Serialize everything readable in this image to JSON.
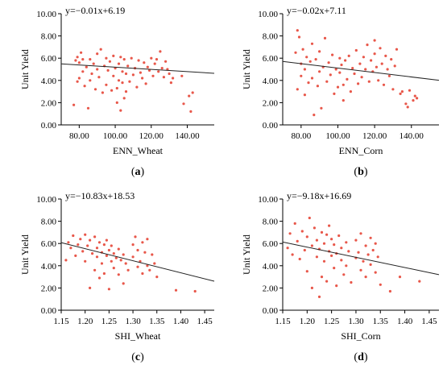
{
  "chart_data": [
    {
      "type": "scatter",
      "panel": "a",
      "caption": "(a)",
      "equation": "y=−0.01x+6.19",
      "xlabel": "ENN_Wheat",
      "ylabel": "Unit Yield",
      "xlim": [
        70,
        155
      ],
      "ylim": [
        0,
        10
      ],
      "xticks": [
        80,
        100,
        120,
        140
      ],
      "xtick_labels": [
        "80.00",
        "100.00",
        "120.00",
        "140.00"
      ],
      "yticks": [
        0,
        2,
        4,
        6,
        8,
        10
      ],
      "ytick_labels": [
        "0.00",
        "2.00",
        "4.00",
        "6.00",
        "8.00",
        "10.00"
      ],
      "trend": {
        "slope": -0.01,
        "intercept": 6.19
      },
      "marker_color": "#e8574a",
      "points": [
        [
          77,
          1.8
        ],
        [
          78,
          5.8
        ],
        [
          79,
          3.9
        ],
        [
          79,
          6.1
        ],
        [
          80,
          5.6
        ],
        [
          80,
          4.2
        ],
        [
          81,
          6.5
        ],
        [
          82,
          5.9
        ],
        [
          82,
          4.8
        ],
        [
          83,
          3.5
        ],
        [
          84,
          5.2
        ],
        [
          85,
          1.5
        ],
        [
          86,
          4.0
        ],
        [
          86,
          5.9
        ],
        [
          87,
          4.6
        ],
        [
          88,
          5.5
        ],
        [
          89,
          3.2
        ],
        [
          90,
          6.4
        ],
        [
          90,
          5.0
        ],
        [
          91,
          4.3
        ],
        [
          92,
          6.8
        ],
        [
          93,
          2.9
        ],
        [
          94,
          5.3
        ],
        [
          95,
          3.6
        ],
        [
          95,
          6.0
        ],
        [
          96,
          4.9
        ],
        [
          97,
          5.7
        ],
        [
          98,
          3.1
        ],
        [
          99,
          6.2
        ],
        [
          99,
          4.4
        ],
        [
          100,
          5.1
        ],
        [
          101,
          3.3
        ],
        [
          101,
          2.0
        ],
        [
          102,
          5.5
        ],
        [
          102,
          4.0
        ],
        [
          103,
          1.3
        ],
        [
          103,
          6.1
        ],
        [
          104,
          3.8
        ],
        [
          104,
          4.8
        ],
        [
          105,
          2.4
        ],
        [
          105,
          5.9
        ],
        [
          106,
          3.0
        ],
        [
          106,
          4.6
        ],
        [
          107,
          5.3
        ],
        [
          108,
          3.9
        ],
        [
          109,
          6.0
        ],
        [
          110,
          4.5
        ],
        [
          111,
          5.1
        ],
        [
          112,
          3.4
        ],
        [
          113,
          5.8
        ],
        [
          114,
          4.7
        ],
        [
          115,
          4.2
        ],
        [
          116,
          5.6
        ],
        [
          117,
          3.7
        ],
        [
          118,
          5.2
        ],
        [
          119,
          4.9
        ],
        [
          120,
          6.0
        ],
        [
          121,
          4.4
        ],
        [
          122,
          5.5
        ],
        [
          123,
          5.9
        ],
        [
          124,
          4.8
        ],
        [
          125,
          6.6
        ],
        [
          126,
          5.1
        ],
        [
          127,
          4.3
        ],
        [
          128,
          5.7
        ],
        [
          129,
          5.0
        ],
        [
          130,
          4.6
        ],
        [
          131,
          3.8
        ],
        [
          132,
          4.2
        ],
        [
          137,
          4.4
        ],
        [
          138,
          1.9
        ],
        [
          141,
          2.6
        ],
        [
          142,
          1.2
        ],
        [
          143,
          2.9
        ]
      ]
    },
    {
      "type": "scatter",
      "panel": "b",
      "caption": "(b)",
      "equation": "y=−0.02x+7.11",
      "xlabel": "ENN_Corn",
      "ylabel": "Unit Yield",
      "xlim": [
        70,
        155
      ],
      "ylim": [
        0,
        10
      ],
      "xticks": [
        80,
        100,
        120,
        140
      ],
      "xtick_labels": [
        "80.00",
        "100.00",
        "120.00",
        "140.00"
      ],
      "yticks": [
        0,
        2,
        4,
        6,
        8,
        10
      ],
      "ytick_labels": [
        "0.00",
        "2.00",
        "4.00",
        "6.00",
        "8.00",
        "10.00"
      ],
      "trend": {
        "slope": -0.02,
        "intercept": 7.11
      },
      "marker_color": "#e8574a",
      "points": [
        [
          77,
          6.5
        ],
        [
          78,
          3.2
        ],
        [
          78,
          8.5
        ],
        [
          79,
          7.9
        ],
        [
          80,
          5.5
        ],
        [
          80,
          4.4
        ],
        [
          81,
          6.8
        ],
        [
          82,
          2.7
        ],
        [
          82,
          5.0
        ],
        [
          83,
          6.1
        ],
        [
          84,
          3.8
        ],
        [
          85,
          5.7
        ],
        [
          86,
          7.3
        ],
        [
          86,
          4.2
        ],
        [
          87,
          0.9
        ],
        [
          88,
          5.9
        ],
        [
          89,
          3.5
        ],
        [
          90,
          6.6
        ],
        [
          90,
          4.8
        ],
        [
          91,
          1.5
        ],
        [
          92,
          5.2
        ],
        [
          93,
          7.8
        ],
        [
          94,
          3.9
        ],
        [
          95,
          5.6
        ],
        [
          96,
          4.5
        ],
        [
          97,
          6.3
        ],
        [
          98,
          2.8
        ],
        [
          99,
          5.0
        ],
        [
          100,
          3.4
        ],
        [
          101,
          6.0
        ],
        [
          101,
          4.7
        ],
        [
          102,
          5.4
        ],
        [
          103,
          2.2
        ],
        [
          103,
          3.6
        ],
        [
          104,
          5.8
        ],
        [
          105,
          4.1
        ],
        [
          106,
          6.2
        ],
        [
          107,
          3.0
        ],
        [
          108,
          5.1
        ],
        [
          109,
          4.6
        ],
        [
          110,
          6.7
        ],
        [
          111,
          3.7
        ],
        [
          112,
          5.5
        ],
        [
          113,
          4.3
        ],
        [
          114,
          6.1
        ],
        [
          115,
          5.0
        ],
        [
          116,
          7.2
        ],
        [
          117,
          3.9
        ],
        [
          118,
          5.8
        ],
        [
          119,
          4.8
        ],
        [
          120,
          7.6
        ],
        [
          120,
          6.4
        ],
        [
          121,
          5.2
        ],
        [
          122,
          4.0
        ],
        [
          123,
          6.9
        ],
        [
          124,
          5.5
        ],
        [
          125,
          3.6
        ],
        [
          126,
          6.2
        ],
        [
          127,
          5.0
        ],
        [
          128,
          4.4
        ],
        [
          129,
          5.9
        ],
        [
          130,
          3.2
        ],
        [
          131,
          5.3
        ],
        [
          132,
          6.8
        ],
        [
          134,
          2.8
        ],
        [
          135,
          3.0
        ],
        [
          137,
          1.9
        ],
        [
          138,
          1.6
        ],
        [
          139,
          3.1
        ],
        [
          141,
          2.2
        ],
        [
          142,
          2.6
        ],
        [
          143,
          2.4
        ]
      ]
    },
    {
      "type": "scatter",
      "panel": "c",
      "caption": "(c)",
      "equation": "y=−10.83x+18.53",
      "xlabel": "SHI_Wheat",
      "ylabel": "Unit Yield",
      "xlim": [
        1.15,
        1.47
      ],
      "ylim": [
        0,
        10
      ],
      "xticks": [
        1.15,
        1.2,
        1.25,
        1.3,
        1.35,
        1.4,
        1.45
      ],
      "xtick_labels": [
        "1.15",
        "1.20",
        "1.25",
        "1.30",
        "1.35",
        "1.40",
        "1.45"
      ],
      "yticks": [
        0,
        2,
        4,
        6,
        8,
        10
      ],
      "ytick_labels": [
        "0.00",
        "2.00",
        "4.00",
        "6.00",
        "8.00",
        "10.00"
      ],
      "trend": {
        "slope": -10.83,
        "intercept": 18.53
      },
      "marker_color": "#e8574a",
      "points": [
        [
          1.16,
          4.5
        ],
        [
          1.165,
          6.1
        ],
        [
          1.17,
          5.6
        ],
        [
          1.175,
          6.7
        ],
        [
          1.18,
          4.9
        ],
        [
          1.185,
          5.9
        ],
        [
          1.19,
          6.4
        ],
        [
          1.195,
          5.3
        ],
        [
          1.2,
          4.4
        ],
        [
          1.2,
          6.8
        ],
        [
          1.205,
          5.8
        ],
        [
          1.21,
          2.0
        ],
        [
          1.21,
          6.3
        ],
        [
          1.215,
          5.1
        ],
        [
          1.22,
          3.6
        ],
        [
          1.22,
          6.6
        ],
        [
          1.225,
          4.8
        ],
        [
          1.225,
          5.6
        ],
        [
          1.23,
          6.1
        ],
        [
          1.23,
          2.9
        ],
        [
          1.235,
          5.2
        ],
        [
          1.235,
          4.2
        ],
        [
          1.24,
          5.9
        ],
        [
          1.24,
          3.3
        ],
        [
          1.245,
          4.9
        ],
        [
          1.245,
          6.3
        ],
        [
          1.25,
          5.4
        ],
        [
          1.25,
          1.9
        ],
        [
          1.255,
          4.4
        ],
        [
          1.255,
          5.8
        ],
        [
          1.26,
          3.8
        ],
        [
          1.26,
          5.1
        ],
        [
          1.265,
          4.7
        ],
        [
          1.27,
          5.5
        ],
        [
          1.27,
          3.2
        ],
        [
          1.275,
          4.5
        ],
        [
          1.28,
          5.0
        ],
        [
          1.28,
          2.4
        ],
        [
          1.285,
          4.2
        ],
        [
          1.29,
          3.6
        ],
        [
          1.3,
          5.9
        ],
        [
          1.3,
          4.8
        ],
        [
          1.305,
          6.6
        ],
        [
          1.31,
          3.9
        ],
        [
          1.31,
          5.4
        ],
        [
          1.315,
          4.4
        ],
        [
          1.32,
          6.1
        ],
        [
          1.32,
          3.3
        ],
        [
          1.325,
          5.2
        ],
        [
          1.33,
          4.0
        ],
        [
          1.33,
          6.4
        ],
        [
          1.335,
          3.6
        ],
        [
          1.34,
          5.0
        ],
        [
          1.345,
          4.2
        ],
        [
          1.35,
          3.0
        ],
        [
          1.39,
          1.8
        ],
        [
          1.43,
          1.7
        ]
      ]
    },
    {
      "type": "scatter",
      "panel": "d",
      "caption": "(d)",
      "equation": "y=−9.18x+16.69",
      "xlabel": "SHI_Corn",
      "ylabel": "Unit Yield",
      "xlim": [
        1.15,
        1.47
      ],
      "ylim": [
        0,
        10
      ],
      "xticks": [
        1.15,
        1.2,
        1.25,
        1.3,
        1.35,
        1.4,
        1.45
      ],
      "xtick_labels": [
        "1.15",
        "1.20",
        "1.25",
        "1.30",
        "1.35",
        "1.40",
        "1.45"
      ],
      "yticks": [
        0,
        2,
        4,
        6,
        8,
        10
      ],
      "ytick_labels": [
        "0.00",
        "2.00",
        "4.00",
        "6.00",
        "8.00",
        "10.00"
      ],
      "trend": {
        "slope": -9.18,
        "intercept": 16.69
      },
      "marker_color": "#e8574a",
      "points": [
        [
          1.16,
          5.6
        ],
        [
          1.165,
          6.9
        ],
        [
          1.17,
          5.0
        ],
        [
          1.175,
          7.8
        ],
        [
          1.18,
          6.2
        ],
        [
          1.185,
          4.6
        ],
        [
          1.19,
          7.1
        ],
        [
          1.195,
          5.4
        ],
        [
          1.2,
          6.6
        ],
        [
          1.2,
          3.5
        ],
        [
          1.205,
          8.3
        ],
        [
          1.21,
          5.8
        ],
        [
          1.21,
          2.0
        ],
        [
          1.215,
          7.4
        ],
        [
          1.22,
          4.8
        ],
        [
          1.22,
          6.3
        ],
        [
          1.225,
          1.2
        ],
        [
          1.225,
          5.5
        ],
        [
          1.23,
          7.0
        ],
        [
          1.23,
          3.0
        ],
        [
          1.235,
          6.0
        ],
        [
          1.235,
          4.4
        ],
        [
          1.24,
          6.8
        ],
        [
          1.24,
          2.6
        ],
        [
          1.245,
          5.3
        ],
        [
          1.245,
          7.6
        ],
        [
          1.25,
          4.9
        ],
        [
          1.25,
          6.4
        ],
        [
          1.255,
          3.8
        ],
        [
          1.255,
          5.9
        ],
        [
          1.26,
          2.2
        ],
        [
          1.26,
          5.1
        ],
        [
          1.265,
          6.7
        ],
        [
          1.27,
          4.5
        ],
        [
          1.27,
          5.6
        ],
        [
          1.275,
          3.2
        ],
        [
          1.28,
          6.1
        ],
        [
          1.28,
          4.0
        ],
        [
          1.285,
          5.3
        ],
        [
          1.29,
          2.5
        ],
        [
          1.3,
          4.7
        ],
        [
          1.3,
          6.3
        ],
        [
          1.305,
          5.2
        ],
        [
          1.31,
          3.6
        ],
        [
          1.31,
          6.9
        ],
        [
          1.315,
          4.4
        ],
        [
          1.32,
          5.8
        ],
        [
          1.32,
          3.0
        ],
        [
          1.325,
          5.0
        ],
        [
          1.33,
          6.5
        ],
        [
          1.33,
          4.1
        ],
        [
          1.335,
          5.4
        ],
        [
          1.34,
          3.4
        ],
        [
          1.34,
          6.0
        ],
        [
          1.345,
          4.8
        ],
        [
          1.35,
          2.3
        ],
        [
          1.37,
          1.7
        ],
        [
          1.39,
          3.0
        ],
        [
          1.43,
          2.6
        ]
      ]
    }
  ]
}
